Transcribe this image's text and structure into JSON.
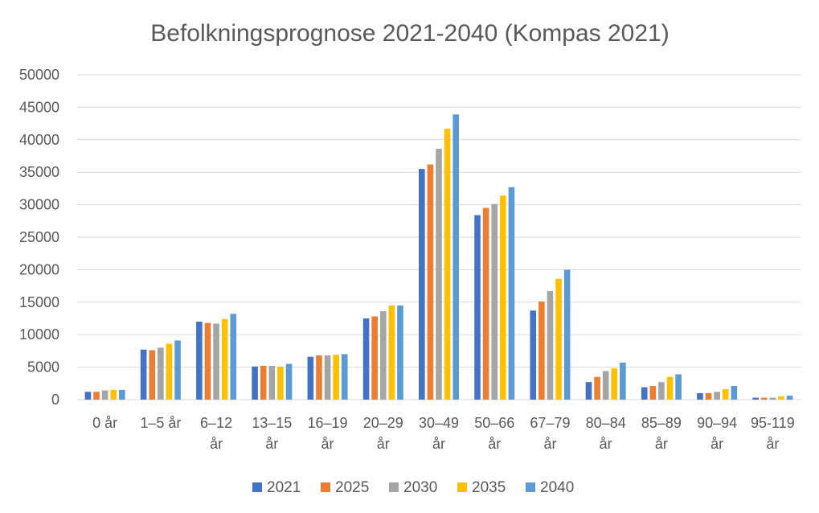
{
  "chart_data": {
    "type": "bar",
    "title": "Befolkningsprognose 2021-2040 (Kompas 2021)",
    "xlabel": "",
    "ylabel": "",
    "ylim": [
      0,
      50000
    ],
    "yticks": [
      0,
      5000,
      10000,
      15000,
      20000,
      25000,
      30000,
      35000,
      40000,
      45000,
      50000
    ],
    "grid": true,
    "legend": "bottom",
    "categories": [
      "0 år",
      "1–5 år",
      "6–12 år",
      "13–15 år",
      "16–19 år",
      "20–29 år",
      "30–49 år",
      "50–66 år",
      "67–79 år",
      "80–84 år",
      "85–89 år",
      "90–94 år",
      "95-119 år"
    ],
    "series": [
      {
        "name": "2021",
        "color": "#4472c4",
        "values": [
          1200,
          7700,
          12000,
          5100,
          6600,
          12500,
          35500,
          28400,
          13700,
          2700,
          1900,
          1000,
          300
        ]
      },
      {
        "name": "2025",
        "color": "#ed7d31",
        "values": [
          1200,
          7600,
          11800,
          5200,
          6800,
          12800,
          36200,
          29500,
          15100,
          3500,
          2100,
          1000,
          300
        ]
      },
      {
        "name": "2030",
        "color": "#a5a5a5",
        "values": [
          1400,
          8000,
          11700,
          5200,
          6800,
          13600,
          38600,
          30100,
          16700,
          4400,
          2700,
          1200,
          300
        ]
      },
      {
        "name": "2035",
        "color": "#ffc000",
        "values": [
          1500,
          8600,
          12400,
          5100,
          6900,
          14500,
          41700,
          31400,
          18600,
          4800,
          3500,
          1600,
          500
        ]
      },
      {
        "name": "2040",
        "color": "#5b9bd5",
        "values": [
          1500,
          9100,
          13200,
          5500,
          7000,
          14500,
          43900,
          32700,
          20000,
          5700,
          3900,
          2100,
          600
        ]
      }
    ]
  }
}
